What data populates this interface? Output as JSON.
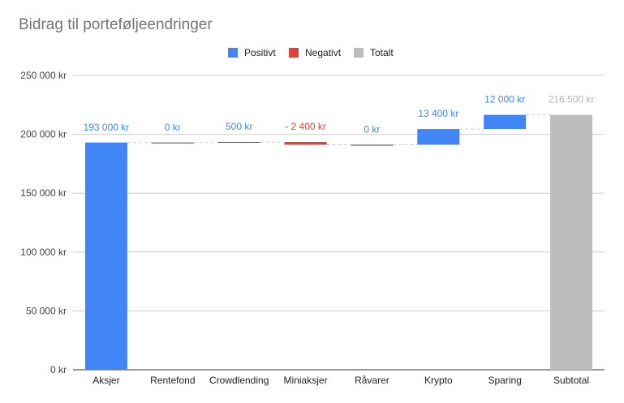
{
  "colors": {
    "positive": "#4285f4",
    "negative": "#db4437",
    "total": "#bdbdbd"
  },
  "chart_data": {
    "type": "bar",
    "subtype": "waterfall",
    "title": "Bidrag til porteføljeendringer",
    "legend": {
      "placement": "top",
      "entries": [
        {
          "key": "positive",
          "label": "Positivt"
        },
        {
          "key": "negative",
          "label": "Negativt"
        },
        {
          "key": "total",
          "label": "Totalt"
        }
      ]
    },
    "ylim": [
      0,
      250000
    ],
    "y_ticks": [
      {
        "value": 0,
        "label": "0 kr"
      },
      {
        "value": 50000,
        "label": "50 000 kr"
      },
      {
        "value": 100000,
        "label": "100 000 kr"
      },
      {
        "value": 150000,
        "label": "150 000 kr"
      },
      {
        "value": 200000,
        "label": "200 000 kr"
      },
      {
        "value": 250000,
        "label": "250 000 kr"
      }
    ],
    "grid": true,
    "categories": [
      "Aksjer",
      "Rentefond",
      "Crowdlending",
      "Miniaksjer",
      "Råvarer",
      "Krypto",
      "Sparing",
      "Subtotal"
    ],
    "values": [
      193000,
      0,
      500,
      -2400,
      0,
      13400,
      12000,
      216500
    ],
    "kinds": [
      "positive",
      "positive",
      "positive",
      "negative",
      "positive",
      "positive",
      "positive",
      "total"
    ],
    "data_labels": [
      "193 000 kr",
      "0 kr",
      "500 kr",
      "- 2 400 kr",
      "0 kr",
      "13 400 kr",
      "12 000 kr",
      "216 500 kr"
    ]
  }
}
